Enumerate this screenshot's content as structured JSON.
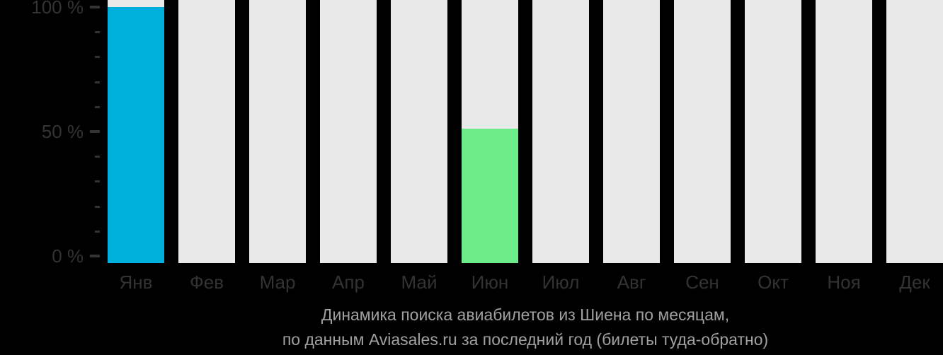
{
  "chart_data": {
    "type": "bar",
    "title": "Динамика поиска авиабилетов из Шиена по месяцам, по данным Aviasales.ru за последний год (билеты туда-обратно)",
    "categories": [
      "Янв",
      "Фев",
      "Мар",
      "Апр",
      "Май",
      "Июн",
      "Июл",
      "Авг",
      "Сен",
      "Окт",
      "Ноя",
      "Дек"
    ],
    "values": [
      100,
      null,
      null,
      null,
      null,
      51,
      null,
      null,
      null,
      null,
      null,
      null
    ],
    "bar_colors": [
      "#00b0dc",
      null,
      null,
      null,
      null,
      "#6cec88",
      null,
      null,
      null,
      null,
      null,
      null
    ],
    "track_color": "#e9e9e9",
    "background_color": "#000000",
    "ylim": [
      0,
      100
    ],
    "grid": false,
    "legend_position": "none",
    "y_axis": {
      "ticks": [
        {
          "label": "100 %",
          "value": 100
        },
        {
          "label": "50 %",
          "value": 50
        },
        {
          "label": "0 %",
          "value": 0
        }
      ],
      "minor_tick_values": [
        90,
        80,
        70,
        60,
        40,
        30,
        20,
        10
      ],
      "text_color": "#333333",
      "tick_color": "#333333"
    },
    "x_axis": {
      "text_color": "#333333"
    }
  },
  "caption": {
    "line1": "Динамика поиска авиабилетов из Шиена по месяцам,",
    "line2": "по данным Aviasales.ru за последний год (билеты туда-обратно)",
    "color": "#a0a0a0"
  }
}
